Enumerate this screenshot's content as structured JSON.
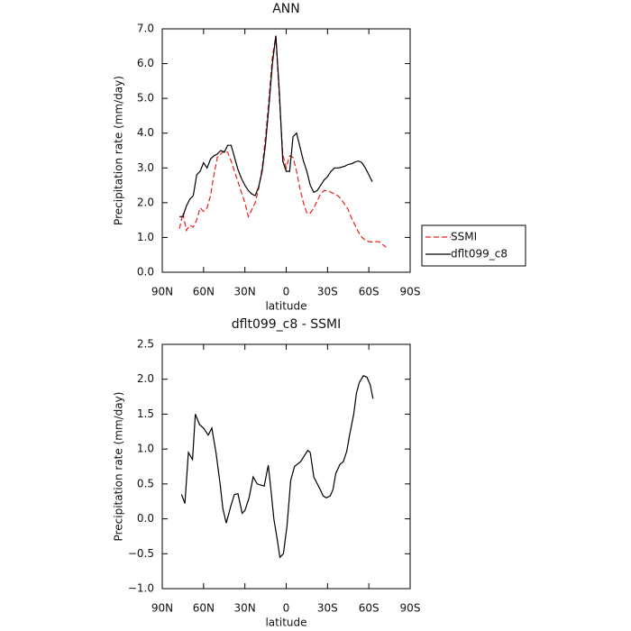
{
  "chart_data": [
    {
      "type": "line",
      "title": "ANN",
      "xlabel": "latitude",
      "ylabel": "Precipitation rate (mm/day)",
      "x": [
        77.5,
        75,
        72.5,
        70,
        67.5,
        65,
        62.5,
        60,
        57.5,
        55,
        52.5,
        50,
        47.5,
        45,
        42.5,
        40,
        37.5,
        35,
        32.5,
        30,
        27.5,
        25,
        22.5,
        20,
        17.5,
        15,
        12.5,
        10,
        7.5,
        5,
        2.5,
        0,
        -2.5,
        -5,
        -7.5,
        -10,
        -12.5,
        -15,
        -17.5,
        -20,
        -22.5,
        -25,
        -27.5,
        -30,
        -32.5,
        -35,
        -37.5,
        -40,
        -42.5,
        -45,
        -47.5,
        -50,
        -52.5,
        -55,
        -57.5,
        -60,
        -62.5,
        -65,
        -67.5,
        -70,
        -72.5
      ],
      "series": [
        {
          "name": "SSMI",
          "color": "#e8201c",
          "line_style": "dashed",
          "values": [
            1.25,
            1.7,
            1.2,
            1.35,
            1.3,
            1.5,
            1.85,
            1.75,
            1.85,
            2.2,
            2.8,
            3.3,
            3.4,
            3.5,
            3.45,
            3.2,
            2.9,
            2.6,
            2.3,
            2.0,
            1.6,
            1.8,
            2.0,
            2.4,
            3.0,
            3.9,
            5.0,
            6.2,
            6.8,
            5.0,
            3.4,
            3.0,
            3.35,
            3.3,
            2.9,
            2.4,
            2.0,
            1.7,
            1.7,
            1.85,
            2.05,
            2.25,
            2.35,
            2.35,
            2.3,
            2.25,
            2.2,
            2.1,
            1.95,
            1.8,
            1.55,
            1.35,
            1.15,
            1.0,
            0.92,
            0.88,
            0.87,
            0.88,
            0.88,
            0.8,
            0.72
          ]
        },
        {
          "name": "dflt099_c8",
          "color": "#000000",
          "line_style": "solid",
          "values": [
            1.6,
            1.6,
            1.9,
            2.1,
            2.2,
            2.8,
            2.9,
            3.15,
            3.0,
            3.25,
            3.35,
            3.4,
            3.5,
            3.45,
            3.65,
            3.65,
            3.3,
            2.95,
            2.7,
            2.5,
            2.35,
            2.25,
            2.2,
            2.45,
            2.9,
            3.7,
            4.8,
            6.0,
            6.8,
            5.2,
            3.2,
            2.9,
            2.9,
            3.9,
            4.0,
            3.6,
            3.2,
            2.9,
            2.5,
            2.3,
            2.35,
            2.5,
            2.65,
            2.75,
            2.9,
            3.0,
            3.0,
            3.02,
            3.05,
            3.1,
            3.12,
            3.17,
            3.2,
            3.15,
            3.0,
            2.8,
            2.6,
            null,
            null,
            null,
            null
          ]
        }
      ],
      "xlim": [
        90,
        -90
      ],
      "xticks": [
        {
          "value": 90,
          "label": "90N"
        },
        {
          "value": 60,
          "label": "60N"
        },
        {
          "value": 30,
          "label": "30N"
        },
        0,
        {
          "value": -30,
          "label": "30S"
        },
        {
          "value": -60,
          "label": "60S"
        },
        {
          "value": -90,
          "label": "90S"
        }
      ],
      "ylim": [
        0,
        7
      ],
      "yticks": [
        {
          "value": 0,
          "label": "0.0"
        },
        {
          "value": 1,
          "label": "1.0"
        },
        {
          "value": 2,
          "label": "2.0"
        },
        {
          "value": 3,
          "label": "3.0"
        },
        {
          "value": 4,
          "label": "4.0"
        },
        {
          "value": 5,
          "label": "5.0"
        },
        {
          "value": 6,
          "label": "6.0"
        },
        {
          "value": 7,
          "label": "7.0"
        }
      ],
      "legend": "right"
    },
    {
      "type": "line",
      "title": "dflt099_c8 - SSMI",
      "xlabel": "latitude",
      "ylabel": "Precipitation rate (mm/day)",
      "x": [
        76,
        73.6,
        71,
        68,
        66,
        63,
        60,
        56.6,
        54,
        51,
        48,
        46,
        43.5,
        40,
        37.6,
        35,
        32,
        30,
        27,
        24,
        21,
        16,
        13,
        11,
        9,
        6.5,
        4.6,
        2,
        -0.6,
        -3.3,
        -6,
        -10.5,
        -13,
        -15.7,
        -17.5,
        -20,
        -24.5,
        -26.8,
        -29,
        -32,
        -34,
        -36,
        -39,
        -41.5,
        -44,
        -46,
        -49,
        -51,
        -53,
        -56,
        -58.6,
        -61,
        -63
      ],
      "series": [
        {
          "color": "#000000",
          "line_style": "solid",
          "values": [
            0.35,
            0.22,
            0.95,
            0.85,
            1.5,
            1.35,
            1.3,
            1.2,
            1.3,
            0.95,
            0.5,
            0.15,
            -0.06,
            0.2,
            0.35,
            0.36,
            0.08,
            0.12,
            0.3,
            0.6,
            0.5,
            0.47,
            0.77,
            0.4,
            0,
            -0.3,
            -0.55,
            -0.5,
            -0.1,
            0.55,
            0.75,
            0.82,
            0.9,
            0.98,
            0.95,
            0.6,
            0.43,
            0.33,
            0.3,
            0.33,
            0.42,
            0.65,
            0.78,
            0.82,
            0.97,
            1.2,
            1.5,
            1.8,
            1.95,
            2.05,
            2.03,
            1.92,
            1.72
          ]
        }
      ],
      "xlim": [
        90,
        -90
      ],
      "xticks": [
        {
          "value": 90,
          "label": "90N"
        },
        {
          "value": 60,
          "label": "60N"
        },
        {
          "value": 30,
          "label": "30N"
        },
        0,
        {
          "value": -30,
          "label": "30S"
        },
        {
          "value": -60,
          "label": "60S"
        },
        {
          "value": -90,
          "label": "90S"
        }
      ],
      "ylim": [
        -1,
        2.5
      ],
      "yticks": [
        {
          "value": -1,
          "label": "−1.0"
        },
        {
          "value": -0.5,
          "label": "−0.5"
        },
        {
          "value": 0,
          "label": "0.0"
        },
        {
          "value": 0.5,
          "label": "0.5"
        },
        {
          "value": 1,
          "label": "1.0"
        },
        {
          "value": 1.5,
          "label": "1.5"
        },
        {
          "value": 2,
          "label": "2.0"
        },
        {
          "value": 2.5,
          "label": "2.5"
        }
      ]
    }
  ]
}
